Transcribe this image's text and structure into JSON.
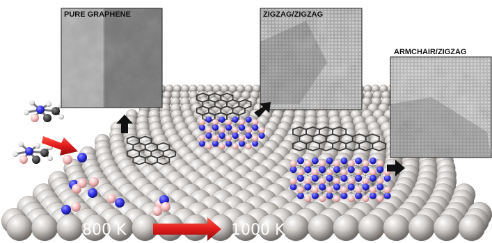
{
  "panels": [
    {
      "label": "PURE GRAPHENE"
    },
    {
      "label": "ZIGZAG/ZIGZAG"
    },
    {
      "label": "ARMCHAIR/ZIGZAG"
    }
  ],
  "temperatures": {
    "low": "800 K",
    "high": "1000 K"
  },
  "colors": {
    "substrate": "#c9c6c3",
    "carbon_lattice": "#3a3a3a",
    "nitrogen": "#2f2fe6",
    "boron": "#f2b8b8",
    "arrow_red": "#e01b1b",
    "arrow_black": "#111111"
  },
  "icons": [
    "aminoborane-molecule",
    "red-arrow",
    "black-arrow",
    "nitrogen-atom",
    "boron-atom"
  ]
}
